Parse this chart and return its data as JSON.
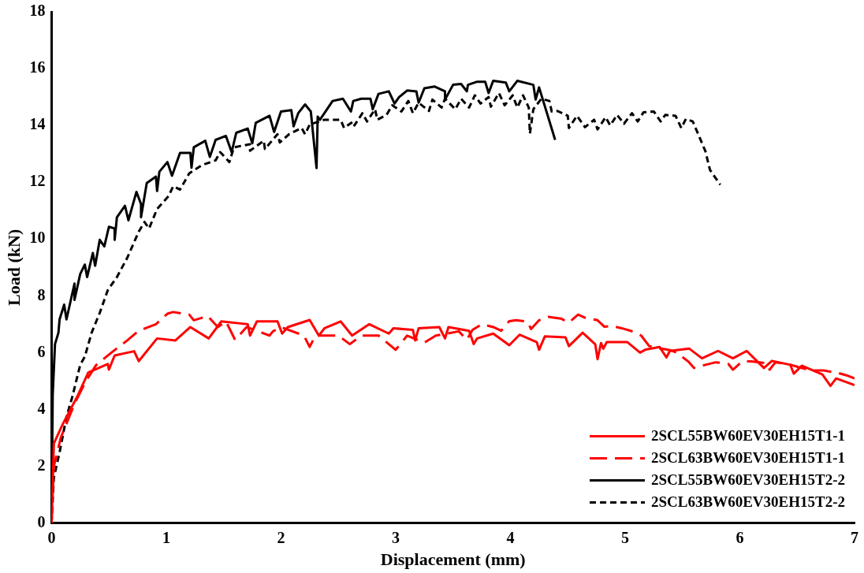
{
  "chart_data": {
    "type": "line",
    "xlabel": "Displacement (mm)",
    "ylabel": "Load (kN)",
    "xlim": [
      0,
      7
    ],
    "xticks": [
      0,
      1,
      2,
      3,
      4,
      5,
      6,
      7
    ],
    "ylim": [
      0,
      18
    ],
    "yticks": [
      0,
      2,
      4,
      6,
      8,
      10,
      12,
      14,
      16,
      18
    ],
    "grid": false,
    "legend": "bottom right",
    "marker": "none",
    "series": [
      {
        "name": "2SCL55BW60EV30EH15T1-1",
        "color": "#ff0000",
        "line_style": "solid",
        "x": [
          0,
          0.02,
          0.1,
          0.23,
          0.32,
          0.49,
          0.5,
          0.55,
          0.72,
          0.76,
          0.92,
          1.08,
          1.21,
          1.37,
          1.48,
          1.71,
          1.73,
          1.79,
          1.97,
          2.01,
          2.06,
          2.25,
          2.33,
          2.38,
          2.52,
          2.62,
          2.77,
          2.94,
          2.98,
          3.15,
          3.17,
          3.2,
          3.38,
          3.43,
          3.46,
          3.64,
          3.68,
          3.71,
          3.85,
          3.99,
          4.08,
          4.23,
          4.25,
          4.3,
          4.48,
          4.51,
          4.63,
          4.74,
          4.76,
          4.79,
          4.81,
          4.84,
          5.02,
          5.13,
          5.18,
          5.3,
          5.36,
          5.39,
          5.56,
          5.67,
          5.81,
          5.94,
          6.06,
          6.21,
          6.28,
          6.44,
          6.47,
          6.54,
          6.72,
          6.79,
          6.84,
          7.0
        ],
        "values": [
          0,
          2.8,
          3.5,
          4.5,
          5.3,
          5.6,
          5.4,
          5.9,
          6.05,
          5.7,
          6.5,
          6.43,
          6.9,
          6.5,
          7.1,
          7.0,
          6.6,
          7.1,
          7.1,
          6.67,
          6.9,
          7.15,
          6.6,
          6.86,
          7.1,
          6.6,
          7.0,
          6.67,
          6.86,
          6.8,
          6.43,
          6.86,
          6.9,
          6.5,
          6.9,
          6.77,
          6.3,
          6.5,
          6.67,
          6.26,
          6.63,
          6.37,
          6.1,
          6.57,
          6.54,
          6.23,
          6.7,
          6.29,
          5.77,
          6.34,
          6.14,
          6.37,
          6.37,
          6.0,
          6.11,
          6.2,
          5.83,
          6.06,
          6.14,
          5.8,
          6.06,
          5.8,
          6.06,
          5.46,
          5.71,
          5.57,
          5.26,
          5.54,
          5.23,
          4.83,
          5.09,
          4.86
        ]
      },
      {
        "name": "2SCL63BW60EV30EH15T1-1",
        "color": "#ff0000",
        "line_style": "dashed",
        "x": [
          0,
          0.02,
          0.08,
          0.2,
          0.3,
          0.39,
          0.55,
          0.66,
          0.76,
          0.91,
          1.01,
          1.06,
          1.2,
          1.24,
          1.29,
          1.36,
          1.45,
          1.52,
          1.6,
          1.7,
          1.9,
          1.93,
          2.0,
          2.2,
          2.25,
          2.3,
          2.5,
          2.6,
          2.7,
          2.85,
          3.0,
          3.1,
          3.25,
          3.35,
          3.55,
          3.62,
          3.67,
          3.75,
          3.85,
          3.92,
          3.99,
          4.05,
          4.15,
          4.18,
          4.25,
          4.33,
          4.44,
          4.51,
          4.59,
          4.65,
          4.76,
          4.82,
          4.88,
          4.97,
          5.07,
          5.14,
          5.21,
          5.28,
          5.39,
          5.45,
          5.55,
          5.6,
          5.7,
          5.79,
          5.9,
          5.94,
          6.02,
          6.1,
          6.23,
          6.26,
          6.31,
          6.42,
          6.51,
          6.63,
          6.73,
          6.85,
          6.93,
          7.0
        ],
        "values": [
          0,
          2.0,
          3.0,
          4.2,
          5.0,
          5.57,
          6.09,
          6.43,
          6.77,
          7.0,
          7.37,
          7.43,
          7.34,
          7.14,
          7.2,
          7.29,
          6.9,
          7.1,
          6.45,
          6.9,
          6.6,
          6.75,
          6.9,
          6.6,
          6.2,
          6.6,
          6.6,
          6.3,
          6.6,
          6.6,
          6.1,
          6.6,
          6.35,
          6.6,
          6.75,
          6.45,
          6.8,
          7.0,
          6.9,
          6.77,
          7.11,
          7.14,
          7.09,
          6.83,
          7.14,
          7.26,
          7.2,
          7.06,
          7.34,
          7.23,
          7.14,
          6.91,
          6.94,
          6.86,
          6.74,
          6.6,
          6.23,
          6.17,
          6.09,
          6.0,
          5.69,
          5.46,
          5.57,
          5.66,
          5.6,
          5.4,
          5.69,
          5.69,
          5.63,
          5.4,
          5.66,
          5.6,
          5.49,
          5.37,
          5.37,
          5.29,
          5.2,
          5.09
        ]
      },
      {
        "name": "2SCL55BW60EV30EH15T2-2",
        "color": "#000000",
        "line_style": "solid",
        "x": [
          0,
          0.01,
          0.03,
          0.06,
          0.07,
          0.11,
          0.13,
          0.2,
          0.2,
          0.25,
          0.29,
          0.31,
          0.36,
          0.38,
          0.42,
          0.46,
          0.5,
          0.55,
          0.55,
          0.57,
          0.64,
          0.67,
          0.74,
          0.78,
          0.78,
          0.83,
          0.91,
          0.92,
          0.94,
          1.01,
          1.05,
          1.12,
          1.21,
          1.22,
          1.24,
          1.34,
          1.38,
          1.43,
          1.52,
          1.57,
          1.61,
          1.71,
          1.75,
          1.78,
          1.9,
          1.94,
          2.0,
          2.09,
          2.11,
          2.15,
          2.21,
          2.26,
          2.31,
          2.32,
          2.34,
          2.45,
          2.54,
          2.61,
          2.63,
          2.7,
          2.78,
          2.8,
          2.85,
          2.94,
          2.99,
          3.03,
          3.1,
          3.18,
          3.2,
          3.25,
          3.34,
          3.43,
          3.43,
          3.5,
          3.57,
          3.62,
          3.63,
          3.71,
          3.78,
          3.81,
          3.85,
          3.96,
          3.99,
          4.06,
          4.2,
          4.22,
          4.25,
          4.39
        ],
        "values": [
          0,
          4.5,
          6.3,
          6.7,
          7.17,
          7.69,
          7.17,
          8.43,
          7.86,
          8.77,
          9.1,
          8.66,
          9.51,
          9.06,
          9.97,
          9.74,
          10.43,
          10.37,
          9.97,
          10.77,
          11.17,
          10.66,
          11.66,
          11.23,
          10.77,
          11.97,
          12.2,
          11.69,
          12.37,
          12.71,
          12.23,
          13.03,
          13.03,
          12.51,
          13.23,
          13.46,
          12.89,
          13.49,
          13.63,
          13.06,
          13.74,
          13.89,
          13.37,
          14.09,
          14.34,
          13.77,
          14.49,
          14.54,
          13.97,
          14.43,
          14.74,
          14.49,
          12.5,
          14.31,
          14.2,
          14.86,
          14.94,
          14.49,
          14.86,
          14.94,
          14.94,
          14.57,
          15.11,
          15.2,
          14.77,
          15.0,
          15.23,
          15.2,
          14.8,
          15.31,
          15.37,
          15.2,
          14.91,
          15.43,
          15.46,
          15.2,
          15.43,
          15.54,
          15.54,
          15.14,
          15.57,
          15.51,
          15.2,
          15.57,
          15.43,
          14.91,
          15.34,
          13.49
        ]
      },
      {
        "name": "2SCL63BW60EV30EH15T2-2",
        "color": "#000000",
        "line_style": "dotted",
        "x": [
          0,
          0.02,
          0.07,
          0.13,
          0.18,
          0.25,
          0.29,
          0.35,
          0.42,
          0.49,
          0.57,
          0.66,
          0.76,
          0.81,
          0.85,
          0.92,
          1.02,
          1.06,
          1.12,
          1.2,
          1.31,
          1.43,
          1.47,
          1.55,
          1.59,
          1.73,
          1.73,
          1.85,
          1.86,
          1.97,
          1.99,
          2.07,
          2.18,
          2.21,
          2.25,
          2.38,
          2.52,
          2.55,
          2.63,
          2.64,
          2.71,
          2.75,
          2.82,
          2.84,
          2.92,
          2.97,
          3.05,
          3.11,
          3.15,
          3.2,
          3.29,
          3.32,
          3.4,
          3.43,
          3.52,
          3.57,
          3.64,
          3.69,
          3.74,
          3.81,
          3.83,
          3.9,
          3.95,
          4.02,
          4.06,
          4.11,
          4.16,
          4.17,
          4.2,
          4.27,
          4.34,
          4.36,
          4.41,
          4.5,
          4.51,
          4.58,
          4.65,
          4.73,
          4.76,
          4.83,
          4.87,
          4.93,
          4.99,
          5.06,
          5.11,
          5.16,
          5.25,
          5.31,
          5.35,
          5.44,
          5.49,
          5.53,
          5.59,
          5.65,
          5.7,
          5.74,
          5.83
        ],
        "values": [
          0,
          1.6,
          2.49,
          3.74,
          4.43,
          5.57,
          5.86,
          6.71,
          7.4,
          8.2,
          8.66,
          9.34,
          10.26,
          10.6,
          10.37,
          11.06,
          11.51,
          11.86,
          11.74,
          12.31,
          12.6,
          12.77,
          13.06,
          12.71,
          13.23,
          13.34,
          13.11,
          13.46,
          13.17,
          13.69,
          13.4,
          13.69,
          13.91,
          13.69,
          14.03,
          14.2,
          14.2,
          13.91,
          14.14,
          14.0,
          14.43,
          14.14,
          14.57,
          14.2,
          14.37,
          14.71,
          14.49,
          14.86,
          14.43,
          14.8,
          14.51,
          14.91,
          14.63,
          14.94,
          14.57,
          14.94,
          14.63,
          15.06,
          14.77,
          15.0,
          14.66,
          15.14,
          14.71,
          15.06,
          14.63,
          15.06,
          14.63,
          13.71,
          14.57,
          14.94,
          14.86,
          14.49,
          14.51,
          14.34,
          13.91,
          14.34,
          13.94,
          14.2,
          13.86,
          14.29,
          14.0,
          14.37,
          14.06,
          14.43,
          14.14,
          14.46,
          14.49,
          14.14,
          14.37,
          14.34,
          13.91,
          14.23,
          14.14,
          13.57,
          13.09,
          12.43,
          11.91
        ]
      }
    ]
  }
}
